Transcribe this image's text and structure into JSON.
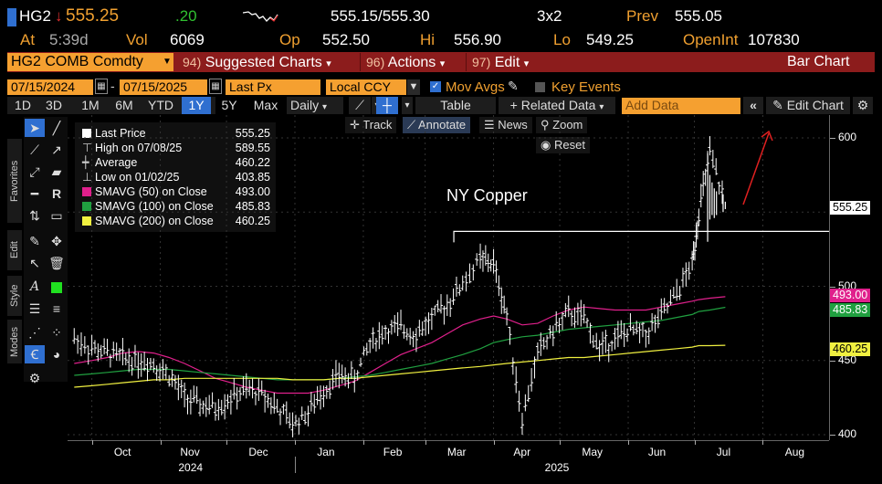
{
  "quote": {
    "ticker": "HG2",
    "arrow": "↓",
    "last": "555.25",
    "change": ".20",
    "bid_ask": "555.15/555.30",
    "size": "3x2",
    "prev_label": "Prev",
    "prev": "555.05",
    "at_label": "At",
    "time": "5:39d",
    "vol_label": "Vol",
    "vol": "6069",
    "op_label": "Op",
    "open": "552.50",
    "hi_label": "Hi",
    "high": "556.90",
    "lo_label": "Lo",
    "low": "549.25",
    "oi_label": "OpenInt",
    "open_int": "107830"
  },
  "command_bar": {
    "security": "HG2 COMB Comdty",
    "suggested_num": "94)",
    "suggested": "Suggested Charts",
    "actions_num": "96)",
    "actions": "Actions",
    "edit_num": "97)",
    "edit": "Edit",
    "chart_type": "Bar Chart"
  },
  "range_bar": {
    "start_date": "07/15/2024",
    "end_date": "07/15/2025",
    "field": "Last Px",
    "currency": "Local CCY",
    "mov_avgs": "Mov Avgs",
    "key_events": "Key Events"
  },
  "period_bar": {
    "periods": [
      "1D",
      "3D",
      "1M",
      "6M",
      "YTD",
      "1Y",
      "5Y",
      "Max"
    ],
    "selected": "1Y",
    "frequency": "Daily",
    "table": "Table",
    "related": "+ Related Data",
    "add_data_placeholder": "Add Data",
    "edit_chart": "Edit Chart"
  },
  "chart_tools": {
    "track": "Track",
    "annotate": "Annotate",
    "news": "News",
    "zoom": "Zoom",
    "reset": "Reset"
  },
  "side_tabs": {
    "favorites": "Favorites",
    "edit": "Edit",
    "style": "Style",
    "modes": "Modes"
  },
  "legend": [
    {
      "label": "Last Price",
      "value": "555.25",
      "color": "#ffffff",
      "marker": "square"
    },
    {
      "label": "High on 07/08/25",
      "value": "589.55",
      "color": "#ffffff",
      "marker": "high"
    },
    {
      "label": "Average",
      "value": "460.22",
      "color": "#ffffff",
      "marker": "avg"
    },
    {
      "label": "Low on 01/02/25",
      "value": "403.85",
      "color": "#ffffff",
      "marker": "low"
    },
    {
      "label": "SMAVG (50)  on Close",
      "value": "493.00",
      "color": "#e0208c",
      "marker": "square"
    },
    {
      "label": "SMAVG (100)  on Close",
      "value": "485.83",
      "color": "#20a040",
      "marker": "square"
    },
    {
      "label": "SMAVG (200)  on Close",
      "value": "460.25",
      "color": "#f0f040",
      "marker": "square"
    }
  ],
  "annotation": {
    "text": "NY Copper"
  },
  "axis": {
    "y_ticks": [
      "600",
      "550",
      "500",
      "450",
      "400"
    ],
    "last_tag": "555.25",
    "sma50_tag": "493.00",
    "sma100_tag": "485.83",
    "sma200_tag": "460.25",
    "months": [
      "Oct",
      "Nov",
      "Dec",
      "Jan",
      "Feb",
      "Mar",
      "Apr",
      "May",
      "Jun",
      "Jul",
      "Aug"
    ],
    "years": [
      "2024",
      "2025"
    ]
  },
  "colors": {
    "amber": "#f0a030",
    "cmd_red": "#8c1c1c",
    "sma50": "#e0208c",
    "sma100": "#20a040",
    "sma200": "#f0f040",
    "selected": "#2f6fd0"
  },
  "chart_data": {
    "type": "line",
    "title": "NY Copper",
    "ylim": [
      400,
      600
    ],
    "x": [
      "2024-09-23",
      "2024-10-01",
      "2024-10-08",
      "2024-10-15",
      "2024-10-22",
      "2024-10-29",
      "2024-11-05",
      "2024-11-12",
      "2024-11-19",
      "2024-11-26",
      "2024-12-03",
      "2024-12-10",
      "2024-12-17",
      "2024-12-24",
      "2024-12-31",
      "2025-01-07",
      "2025-01-14",
      "2025-01-21",
      "2025-01-28",
      "2025-02-04",
      "2025-02-11",
      "2025-02-18",
      "2025-02-25",
      "2025-03-04",
      "2025-03-11",
      "2025-03-18",
      "2025-03-26",
      "2025-04-01",
      "2025-04-07",
      "2025-04-14",
      "2025-04-21",
      "2025-04-28",
      "2025-05-05",
      "2025-05-12",
      "2025-05-19",
      "2025-05-26",
      "2025-06-02",
      "2025-06-09",
      "2025-06-16",
      "2025-06-23",
      "2025-06-30",
      "2025-07-03",
      "2025-07-08",
      "2025-07-15"
    ],
    "series": [
      {
        "name": "Last Price",
        "values": [
          465,
          458,
          455,
          452,
          450,
          448,
          440,
          425,
          420,
          418,
          425,
          430,
          428,
          418,
          407,
          415,
          430,
          440,
          438,
          462,
          470,
          472,
          468,
          478,
          488,
          502,
          518,
          515,
          480,
          410,
          455,
          470,
          482,
          478,
          458,
          465,
          470,
          468,
          480,
          495,
          515,
          550,
          589.55,
          555.25
        ]
      },
      {
        "name": "SMAVG (50)",
        "values": [
          448,
          450,
          452,
          455,
          456,
          455,
          452,
          448,
          443,
          438,
          435,
          432,
          430,
          428,
          428,
          428,
          430,
          433,
          436,
          442,
          448,
          454,
          458,
          462,
          468,
          474,
          478,
          480,
          478,
          474,
          475,
          480,
          484,
          486,
          485,
          484,
          484,
          484,
          486,
          488,
          490,
          491,
          492,
          493
        ]
      },
      {
        "name": "SMAVG (100)",
        "values": [
          440,
          441,
          442,
          443,
          444,
          444,
          444,
          443,
          442,
          441,
          440,
          439,
          438,
          437,
          437,
          437,
          437,
          438,
          439,
          440,
          442,
          444,
          446,
          448,
          451,
          454,
          458,
          462,
          464,
          466,
          467,
          469,
          471,
          472,
          473,
          474,
          475,
          476,
          477,
          479,
          481,
          483,
          484,
          485.83
        ]
      },
      {
        "name": "SMAVG (200)",
        "values": [
          432,
          433,
          434,
          435,
          436,
          437,
          437,
          438,
          438,
          438,
          438,
          438,
          438,
          438,
          437,
          437,
          437,
          438,
          438,
          439,
          440,
          441,
          442,
          443,
          444,
          445,
          446,
          447,
          448,
          449,
          450,
          451,
          452,
          452,
          453,
          454,
          455,
          456,
          457,
          458,
          459,
          460,
          460,
          460.25
        ]
      }
    ]
  }
}
